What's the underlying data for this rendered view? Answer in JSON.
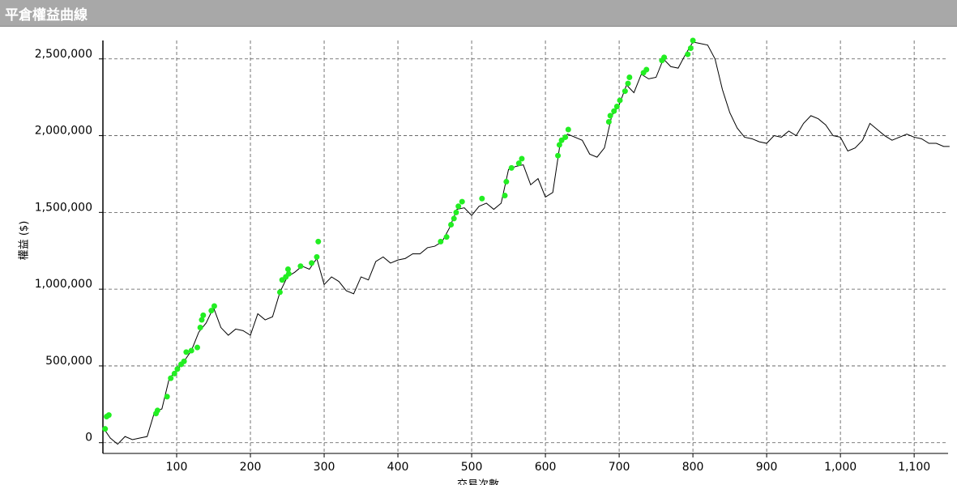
{
  "chart_data": {
    "type": "line",
    "title": "平倉權益曲線",
    "y_label": "權益 ($)",
    "x_label": "交易次數",
    "x": [
      0,
      10,
      20,
      30,
      40,
      50,
      60,
      70,
      80,
      90,
      100,
      110,
      120,
      130,
      140,
      150,
      160,
      170,
      180,
      190,
      200,
      210,
      220,
      230,
      240,
      250,
      260,
      270,
      280,
      290,
      300,
      310,
      320,
      330,
      340,
      350,
      360,
      370,
      380,
      390,
      400,
      410,
      420,
      430,
      440,
      450,
      460,
      470,
      480,
      490,
      500,
      510,
      520,
      530,
      540,
      550,
      560,
      570,
      580,
      590,
      600,
      610,
      620,
      630,
      640,
      650,
      660,
      670,
      680,
      690,
      700,
      710,
      720,
      730,
      740,
      750,
      760,
      770,
      780,
      790,
      800,
      810,
      820,
      830,
      840,
      850,
      860,
      870,
      880,
      890,
      900,
      910,
      920,
      930,
      940,
      950,
      960,
      970,
      980,
      990,
      1000,
      1010,
      1020,
      1030,
      1040,
      1050,
      1060,
      1070,
      1080,
      1090,
      1100,
      1110,
      1120,
      1130,
      1140,
      1148
    ],
    "series": [
      {
        "color": "#000000",
        "values": [
          100000,
          30000,
          -10000,
          40000,
          20000,
          30000,
          40000,
          200000,
          220000,
          420000,
          470000,
          530000,
          600000,
          720000,
          780000,
          880000,
          750000,
          700000,
          740000,
          730000,
          700000,
          840000,
          800000,
          820000,
          980000,
          1080000,
          1110000,
          1150000,
          1130000,
          1200000,
          1030000,
          1080000,
          1050000,
          990000,
          970000,
          1080000,
          1060000,
          1180000,
          1210000,
          1170000,
          1190000,
          1200000,
          1230000,
          1230000,
          1270000,
          1280000,
          1310000,
          1400000,
          1520000,
          1530000,
          1480000,
          1540000,
          1560000,
          1520000,
          1560000,
          1780000,
          1800000,
          1810000,
          1680000,
          1720000,
          1600000,
          1630000,
          1950000,
          2010000,
          1990000,
          1970000,
          1880000,
          1860000,
          1920000,
          2130000,
          2200000,
          2330000,
          2280000,
          2400000,
          2370000,
          2380000,
          2500000,
          2450000,
          2440000,
          2530000,
          2610000,
          2600000,
          2590000,
          2500000,
          2300000,
          2150000,
          2050000,
          1990000,
          1980000,
          1960000,
          1950000,
          2000000,
          1990000,
          2030000,
          2000000,
          2080000,
          2130000,
          2110000,
          2070000,
          2000000,
          1990000,
          1900000,
          1920000,
          1970000,
          2080000,
          2040000,
          2000000,
          1970000,
          1990000,
          2010000,
          1990000,
          1980000,
          1950000,
          1950000,
          1930000,
          1930000
        ]
      },
      {
        "style": "marker",
        "color": "#22ee22",
        "x": [
          3,
          5,
          8,
          72,
          74,
          87,
          92,
          97,
          101,
          106,
          110,
          113,
          120,
          128,
          132,
          134,
          136,
          147,
          151,
          240,
          243,
          248,
          252,
          251,
          268,
          283,
          290,
          292,
          458,
          466,
          472,
          476,
          479,
          482,
          487,
          514,
          545,
          547,
          554,
          564,
          568,
          617,
          619,
          622,
          627,
          631,
          686,
          688,
          693,
          697,
          701,
          708,
          712,
          714,
          733,
          737,
          758,
          761,
          793,
          797,
          800
        ],
        "values": [
          90000,
          170000,
          180000,
          190000,
          210000,
          300000,
          420000,
          450000,
          480000,
          510000,
          530000,
          590000,
          600000,
          620000,
          750000,
          800000,
          830000,
          860000,
          890000,
          980000,
          1060000,
          1080000,
          1100000,
          1130000,
          1150000,
          1170000,
          1210000,
          1310000,
          1310000,
          1340000,
          1420000,
          1460000,
          1500000,
          1540000,
          1570000,
          1590000,
          1610000,
          1700000,
          1790000,
          1820000,
          1850000,
          1870000,
          1940000,
          1970000,
          1990000,
          2040000,
          2090000,
          2130000,
          2160000,
          2190000,
          2230000,
          2290000,
          2340000,
          2380000,
          2410000,
          2430000,
          2490000,
          2510000,
          2530000,
          2570000,
          2620000
        ]
      }
    ],
    "xlim": [
      0,
      1146
    ],
    "ylim": [
      -70000,
      2620000
    ],
    "xticks": [
      100,
      200,
      300,
      400,
      500,
      600,
      700,
      800,
      900,
      {
        "value": 1000,
        "label": "1,000"
      },
      {
        "value": 1100,
        "label": "1,100"
      }
    ],
    "yticks": [
      0,
      {
        "value": 500000,
        "label": "500,000"
      },
      {
        "value": 1000000,
        "label": "1,000,000"
      },
      {
        "value": 1500000,
        "label": "1,500,000"
      },
      {
        "value": 2000000,
        "label": "2,000,000"
      },
      {
        "value": 2500000,
        "label": "2,500,000"
      }
    ],
    "grid": true
  }
}
